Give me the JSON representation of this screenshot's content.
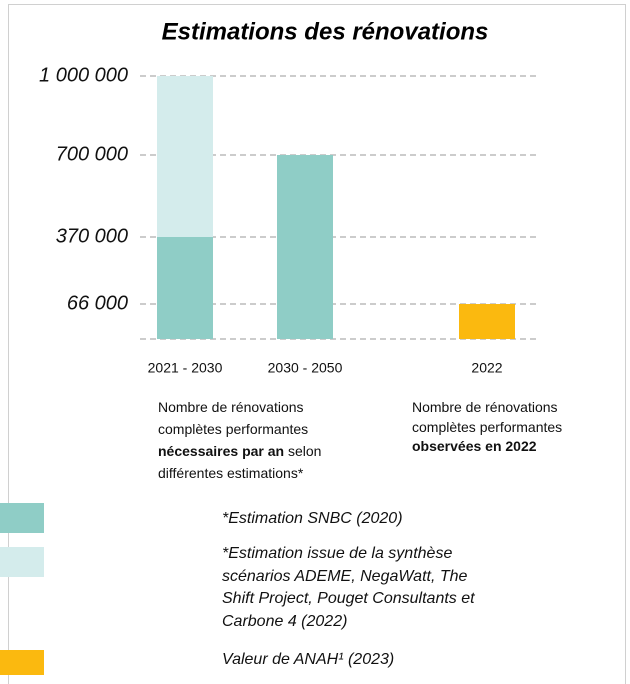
{
  "chart_data": {
    "type": "stacked-bar",
    "title": "Estimations des rénovations",
    "categories": [
      "2021 - 2030",
      "2030 - 2050",
      "2022"
    ],
    "series": [
      {
        "name": "*Estimation SNBC (2020)",
        "color": "#8fcdc6",
        "values": [
          370000,
          700000,
          null
        ]
      },
      {
        "name": "*Estimation issue de la synthèse scénarios ADEME, NegaWatt, The Shift Project, Pouget Consultants et Carbone 4 (2022)",
        "color": "#d4ecec",
        "values": [
          630000,
          null,
          null
        ]
      },
      {
        "name": "Valeur  de ANAH¹ (2023)",
        "color": "#fbb90f",
        "values": [
          null,
          null,
          66000
        ]
      }
    ],
    "ylim": [
      0,
      1000000
    ],
    "yticks": [
      {
        "value": 66000,
        "label": "66 000"
      },
      {
        "value": 370000,
        "label": "370 000"
      },
      {
        "value": 700000,
        "label": "700 000"
      },
      {
        "value": 1000000,
        "label": "1 000 000"
      }
    ],
    "grid": true,
    "annotations": [
      {
        "parts": [
          {
            "text": "Nombre de rénovations complètes performantes ",
            "bold": false
          },
          {
            "text": "nécessaires par an",
            "bold": true
          },
          {
            "text": " selon différentes estimations*",
            "bold": false
          }
        ]
      },
      {
        "parts": [
          {
            "text": "Nombre de rénovations complètes performantes ",
            "bold": false
          },
          {
            "text": "observées en 2022",
            "bold": true
          }
        ]
      }
    ]
  }
}
